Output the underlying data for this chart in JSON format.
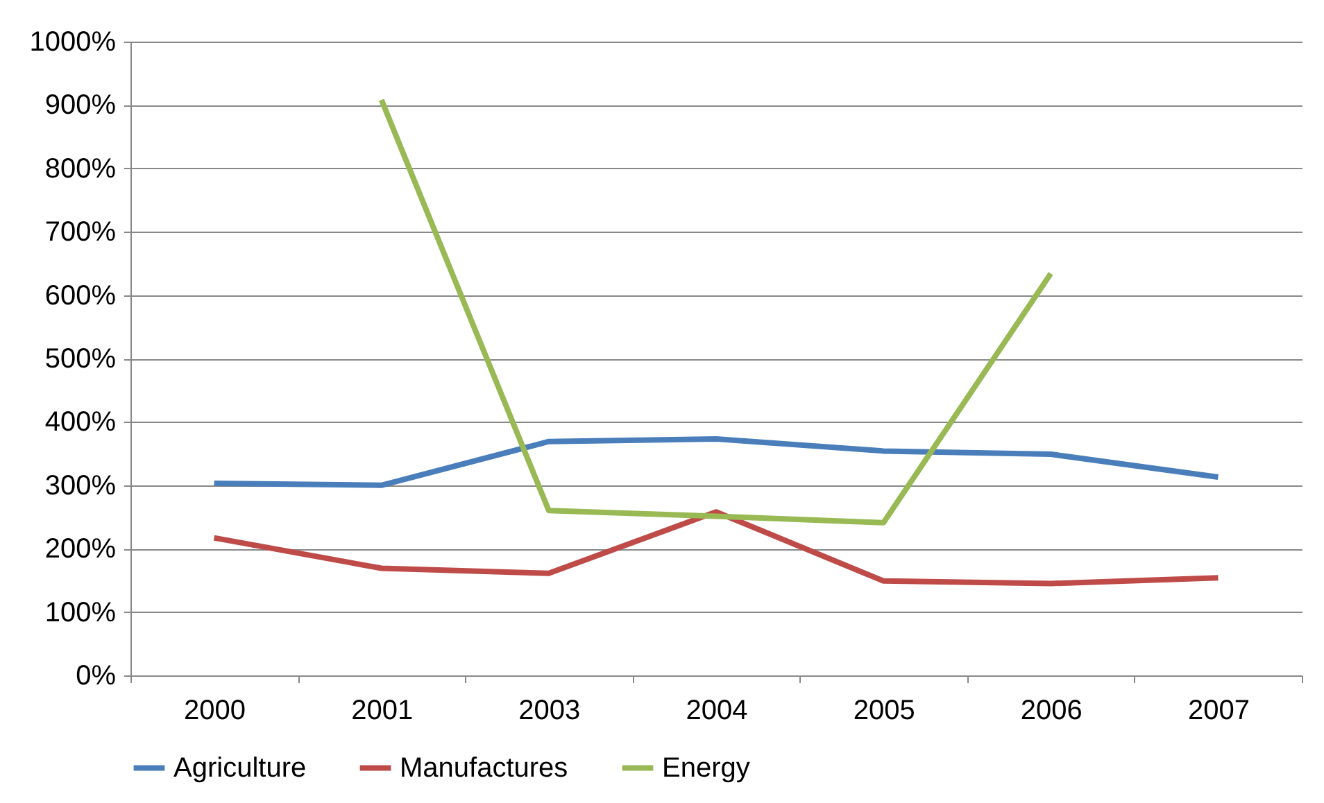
{
  "chart_data": {
    "type": "line",
    "categories": [
      "2000",
      "2001",
      "2003",
      "2004",
      "2005",
      "2006",
      "2007"
    ],
    "series": [
      {
        "name": "Agriculture",
        "color": "#4a7ebb",
        "values": [
          303,
          300,
          369,
          373,
          354,
          349,
          313
        ]
      },
      {
        "name": "Manufactures",
        "color": "#be4b48",
        "values": [
          217,
          169,
          161,
          258,
          149,
          145,
          154
        ]
      },
      {
        "name": "Energy",
        "color": "#98b954",
        "values": [
          null,
          908,
          260,
          251,
          241,
          634,
          null
        ]
      }
    ],
    "ylim": [
      0,
      1000
    ],
    "yticks": [
      {
        "value": 0,
        "label": "0%"
      },
      {
        "value": 100,
        "label": "100%"
      },
      {
        "value": 200,
        "label": "200%"
      },
      {
        "value": 300,
        "label": "300%"
      },
      {
        "value": 400,
        "label": "400%"
      },
      {
        "value": 500,
        "label": "500%"
      },
      {
        "value": 600,
        "label": "600%"
      },
      {
        "value": 700,
        "label": "700%"
      },
      {
        "value": 800,
        "label": "800%"
      },
      {
        "value": 900,
        "label": "900%"
      },
      {
        "value": 1000,
        "label": "1000%"
      }
    ],
    "grid": "y",
    "legend": "bottom",
    "marker": "none",
    "line_style": "solid"
  }
}
